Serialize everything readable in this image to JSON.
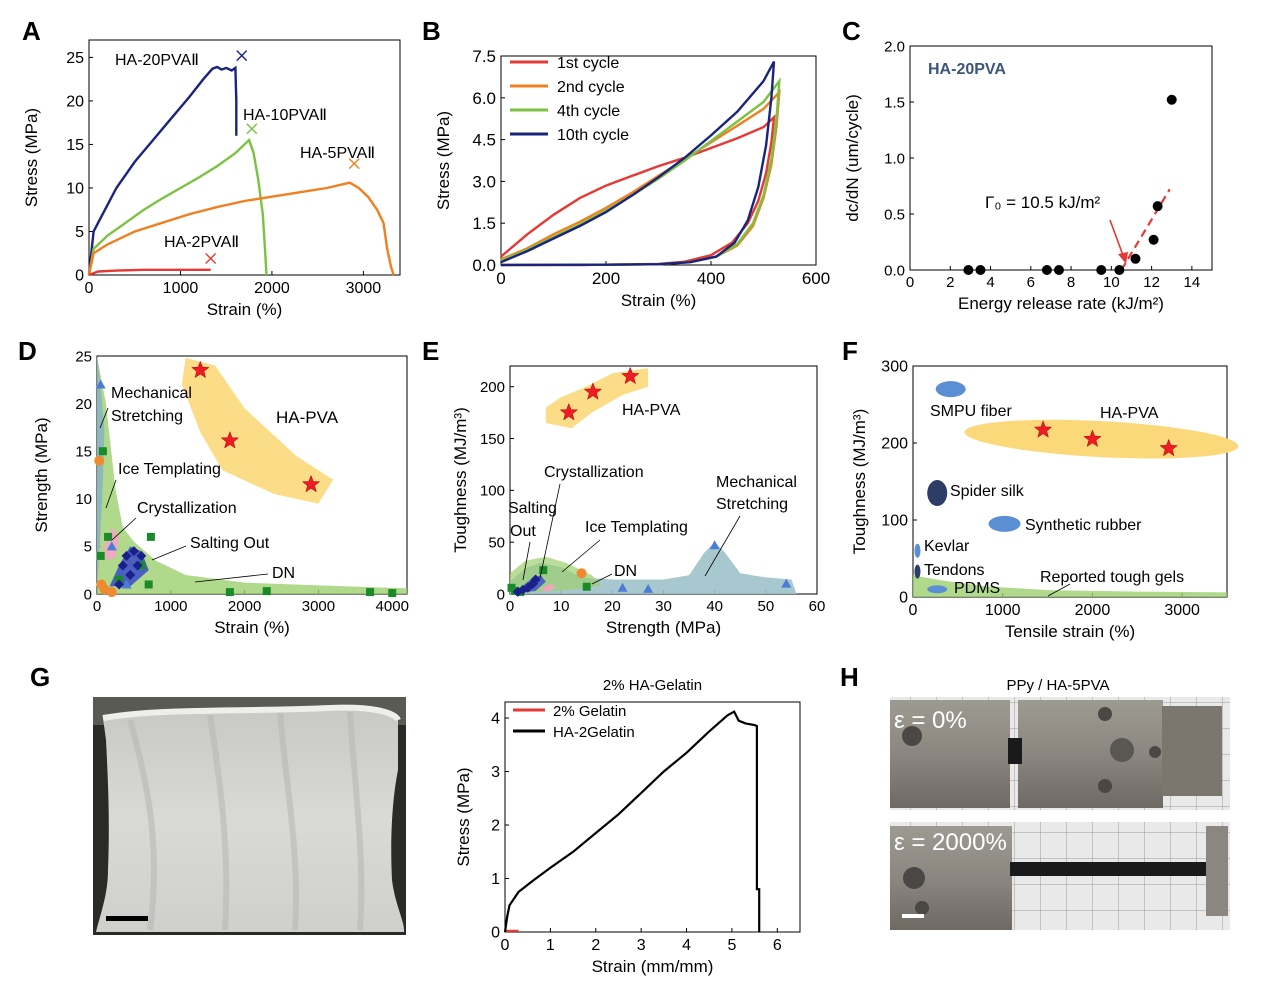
{
  "panel_letters": [
    "A",
    "B",
    "C",
    "D",
    "E",
    "F",
    "G",
    "H"
  ],
  "chart_data": [
    {
      "id": "A",
      "type": "line",
      "xlabel": "Strain (%)",
      "ylabel": "Stress (MPa)",
      "xlim": [
        0,
        3400
      ],
      "ylim": [
        0,
        27
      ],
      "xticks": [
        0,
        1000,
        2000,
        3000
      ],
      "yticks": [
        0,
        5,
        10,
        15,
        20,
        25
      ],
      "series": [
        {
          "name": "HA-20PVAⅡ",
          "color": "#1a237e",
          "end_marker": [
            1670,
            25.2
          ],
          "x": [
            0,
            50,
            150,
            300,
            500,
            700,
            900,
            1100,
            1250,
            1350,
            1400,
            1450,
            1500,
            1560,
            1600,
            1610,
            1610
          ],
          "y": [
            0,
            5,
            7,
            10,
            13,
            15.5,
            18,
            20.5,
            22.5,
            23.7,
            23.9,
            23.6,
            23.8,
            23.5,
            23.8,
            20,
            16
          ]
        },
        {
          "name": "HA-10PVAⅡ",
          "color": "#7cc242",
          "end_marker": [
            1780,
            16.8
          ],
          "x": [
            0,
            50,
            200,
            400,
            600,
            800,
            1000,
            1200,
            1400,
            1600,
            1700,
            1750,
            1800,
            1850,
            1900,
            1930,
            1940
          ],
          "y": [
            0,
            3,
            4.5,
            6,
            7.5,
            8.8,
            10,
            11.2,
            12.5,
            14,
            15,
            15.5,
            14,
            11,
            7,
            2,
            0
          ]
        },
        {
          "name": "HA-5PVAⅡ",
          "color": "#f07f21",
          "end_marker": [
            2900,
            12.8
          ],
          "x": [
            0,
            50,
            200,
            500,
            800,
            1100,
            1400,
            1700,
            2000,
            2300,
            2600,
            2850,
            2950,
            3050,
            3150,
            3220,
            3260,
            3300,
            3330
          ],
          "y": [
            0,
            2.5,
            3.5,
            5,
            6,
            7,
            7.8,
            8.5,
            9,
            9.5,
            10,
            10.6,
            10,
            9,
            7.5,
            6,
            3,
            1,
            0
          ]
        },
        {
          "name": "HA-2PVAⅡ",
          "color": "#e53935",
          "end_marker": [
            1330,
            1.9
          ],
          "x": [
            0,
            100,
            300,
            600,
            900,
            1200,
            1330
          ],
          "y": [
            0,
            0.4,
            0.5,
            0.6,
            0.6,
            0.6,
            0.6
          ]
        }
      ]
    },
    {
      "id": "B",
      "type": "line",
      "xlabel": "Strain (%)",
      "ylabel": "Stress (MPa)",
      "xlim": [
        0,
        600
      ],
      "ylim": [
        0,
        7.5
      ],
      "xticks": [
        0,
        200,
        400,
        600
      ],
      "yticks": [
        0.0,
        1.5,
        3.0,
        4.5,
        6.0,
        7.5
      ],
      "legend": "top-left",
      "series": [
        {
          "name": "1st cycle",
          "color": "#e53935",
          "x": [
            0,
            50,
            100,
            150,
            200,
            250,
            300,
            350,
            400,
            450,
            500,
            520,
            515,
            505,
            490,
            470,
            440,
            400,
            350,
            300,
            250,
            200,
            150,
            0
          ],
          "y": [
            0.3,
            1.1,
            1.8,
            2.4,
            2.85,
            3.2,
            3.55,
            3.85,
            4.2,
            4.55,
            4.95,
            5.3,
            4.4,
            3.3,
            2.3,
            1.5,
            0.8,
            0.35,
            0.12,
            0.04,
            0.02,
            0.01,
            0,
            0
          ]
        },
        {
          "name": "2nd cycle",
          "color": "#f07f21",
          "x": [
            0,
            50,
            100,
            150,
            200,
            250,
            300,
            350,
            400,
            450,
            500,
            530,
            525,
            515,
            500,
            480,
            450,
            410,
            360,
            300,
            250,
            200,
            0
          ],
          "y": [
            0.2,
            0.6,
            1.1,
            1.55,
            2.05,
            2.6,
            3.2,
            3.8,
            4.4,
            5.0,
            5.6,
            6.2,
            5.0,
            3.6,
            2.4,
            1.4,
            0.7,
            0.3,
            0.1,
            0.03,
            0.02,
            0.01,
            0
          ]
        },
        {
          "name": "4th cycle",
          "color": "#7cc242",
          "x": [
            0,
            50,
            100,
            150,
            200,
            250,
            300,
            350,
            400,
            450,
            500,
            530,
            525,
            515,
            500,
            480,
            450,
            410,
            360,
            300,
            250,
            200,
            0
          ],
          "y": [
            0.15,
            0.55,
            1.0,
            1.45,
            1.95,
            2.5,
            3.1,
            3.75,
            4.45,
            5.15,
            5.85,
            6.6,
            5.3,
            3.8,
            2.5,
            1.5,
            0.75,
            0.3,
            0.1,
            0.03,
            0.02,
            0.01,
            0
          ]
        },
        {
          "name": "10th cycle",
          "color": "#1a237e",
          "x": [
            0,
            50,
            100,
            150,
            200,
            250,
            300,
            350,
            400,
            450,
            500,
            520,
            515,
            505,
            490,
            470,
            445,
            410,
            360,
            300,
            250,
            200,
            0
          ],
          "y": [
            0.1,
            0.5,
            0.95,
            1.4,
            1.9,
            2.5,
            3.15,
            3.85,
            4.65,
            5.5,
            6.6,
            7.3,
            6.0,
            4.3,
            2.8,
            1.6,
            0.8,
            0.3,
            0.1,
            0.03,
            0.02,
            0.01,
            0
          ]
        }
      ]
    },
    {
      "id": "C",
      "type": "scatter",
      "xlabel": "Energy release rate (kJ/m²)",
      "ylabel": "dc/dN (um/cycle)",
      "xlim": [
        0,
        15
      ],
      "ylim": [
        0,
        2.0
      ],
      "xticks": [
        0,
        2,
        4,
        6,
        8,
        10,
        12,
        14
      ],
      "yticks": [
        0.0,
        0.5,
        1.0,
        1.5,
        2.0
      ],
      "inset_label": "HA-20PVA",
      "annotation": "Γ₀ = 10.5 kJ/m²",
      "fit_line": {
        "x": [
          10.5,
          12.9
        ],
        "y": [
          0,
          0.72
        ],
        "color": "#e53935"
      },
      "x": [
        2.9,
        3.5,
        6.8,
        7.4,
        9.5,
        10.4,
        11.2,
        12.1,
        12.3,
        13.0
      ],
      "y": [
        0,
        0,
        0,
        0,
        0,
        0,
        0.1,
        0.27,
        0.57,
        1.52
      ]
    },
    {
      "id": "D",
      "type": "scatter",
      "xlabel": "Strain (%)",
      "ylabel": "Strength (MPa)",
      "xlim": [
        0,
        4200
      ],
      "ylim": [
        0,
        25
      ],
      "xticks": [
        0,
        1000,
        2000,
        3000,
        4000
      ],
      "yticks": [
        0,
        5,
        10,
        15,
        20,
        25
      ],
      "labels": [
        "Mechanical",
        "Stretching",
        "Ice Templating",
        "Crystallization",
        "Salting Out",
        "DN",
        "HA-PVA"
      ],
      "ha_pva": {
        "x": [
          1400,
          1800,
          2900
        ],
        "y": [
          23.5,
          16.1,
          11.5
        ]
      },
      "dn": {
        "x": [
          80,
          50,
          150,
          300,
          600,
          700,
          730,
          1800,
          2300,
          3700,
          4000
        ],
        "y": [
          15,
          4,
          6,
          1.5,
          3,
          1,
          6,
          0.2,
          0.3,
          0.2,
          0.1
        ]
      },
      "salting": {
        "x": [
          300,
          350,
          400,
          450,
          500,
          550,
          600
        ],
        "y": [
          1,
          3,
          4,
          2,
          4.5,
          3,
          4
        ]
      },
      "mech": {
        "x": [
          50,
          200,
          400
        ],
        "y": [
          22,
          5,
          1
        ]
      },
      "ice": {
        "x": [
          30,
          60,
          100,
          200
        ],
        "y": [
          14,
          1,
          0.5,
          0.2
        ]
      }
    },
    {
      "id": "E",
      "type": "scatter",
      "xlabel": "Strength (MPa)",
      "ylabel": "Toughness (MJ/m³)",
      "xlim": [
        0,
        60
      ],
      "ylim": [
        0,
        220
      ],
      "xticks": [
        0,
        10,
        20,
        30,
        40,
        50,
        60
      ],
      "yticks": [
        0,
        50,
        100,
        150,
        200
      ],
      "labels": [
        "HA-PVA",
        "Crystallization",
        "Salting",
        "Out",
        "Ice Templating",
        "Mechanical",
        "Stretching",
        "DN"
      ],
      "ha_pva": {
        "x": [
          11.5,
          16.2,
          23.5
        ],
        "y": [
          175,
          195,
          210
        ]
      },
      "dn": {
        "x": [
          0.3,
          1,
          2,
          6.5,
          15
        ],
        "y": [
          6,
          3,
          2,
          23,
          7
        ]
      },
      "salting": {
        "x": [
          1.5,
          2.5,
          3.5,
          4.5,
          5
        ],
        "y": [
          2,
          4,
          6,
          10,
          14
        ]
      },
      "mech": {
        "x": [
          22,
          27,
          40,
          54
        ],
        "y": [
          6,
          5,
          47,
          10
        ]
      },
      "ice": {
        "x": [
          14
        ],
        "y": [
          20
        ]
      }
    },
    {
      "id": "F",
      "type": "scatter",
      "xlabel": "Tensile strain (%)",
      "ylabel": "Toughness (MJ/m³)",
      "xlim": [
        0,
        3500
      ],
      "ylim": [
        0,
        300
      ],
      "xticks": [
        0,
        1000,
        2000,
        3000
      ],
      "yticks": [
        0,
        100,
        200,
        300
      ],
      "labels": [
        "SMPU fiber",
        "HA-PVA",
        "Spider silk",
        "Synthetic rubber",
        "Kevlar",
        "Tendons",
        "PDMS",
        "Reported tough gels"
      ],
      "ha_pva": {
        "x": [
          1450,
          2000,
          2850
        ],
        "y": [
          217,
          205,
          193
        ]
      }
    },
    {
      "id": "G",
      "type": "line",
      "title": "2% HA-Gelatin",
      "xlabel": "Strain (mm/mm)",
      "ylabel": "Stress (MPa)",
      "xlim": [
        0,
        6.5
      ],
      "ylim": [
        0,
        4.3
      ],
      "xticks": [
        0,
        1,
        2,
        3,
        4,
        5,
        6
      ],
      "yticks": [
        0,
        1,
        2,
        3,
        4
      ],
      "legend": "top-left",
      "series": [
        {
          "name": "2% Gelatin",
          "color": "#e53935",
          "x": [
            0,
            0.3
          ],
          "y": [
            0.02,
            0.02
          ]
        },
        {
          "name": "HA-2Gelatin",
          "color": "#000000",
          "x": [
            0,
            0.05,
            0.1,
            0.3,
            0.6,
            1,
            1.5,
            2,
            2.5,
            3,
            3.5,
            4,
            4.5,
            4.9,
            5.05,
            5.15,
            5.3,
            5.5,
            5.55,
            5.55,
            5.6,
            5.6
          ],
          "y": [
            0,
            0.3,
            0.5,
            0.75,
            0.95,
            1.2,
            1.5,
            1.85,
            2.2,
            2.6,
            3.0,
            3.35,
            3.75,
            4.05,
            4.12,
            3.95,
            3.9,
            3.87,
            3.85,
            0.8,
            0.8,
            0
          ]
        }
      ]
    }
  ],
  "photo_h": {
    "title": "PPy / HA-5PVA",
    "label_top": "ε = 0%",
    "label_bottom": "ε = 2000%"
  }
}
